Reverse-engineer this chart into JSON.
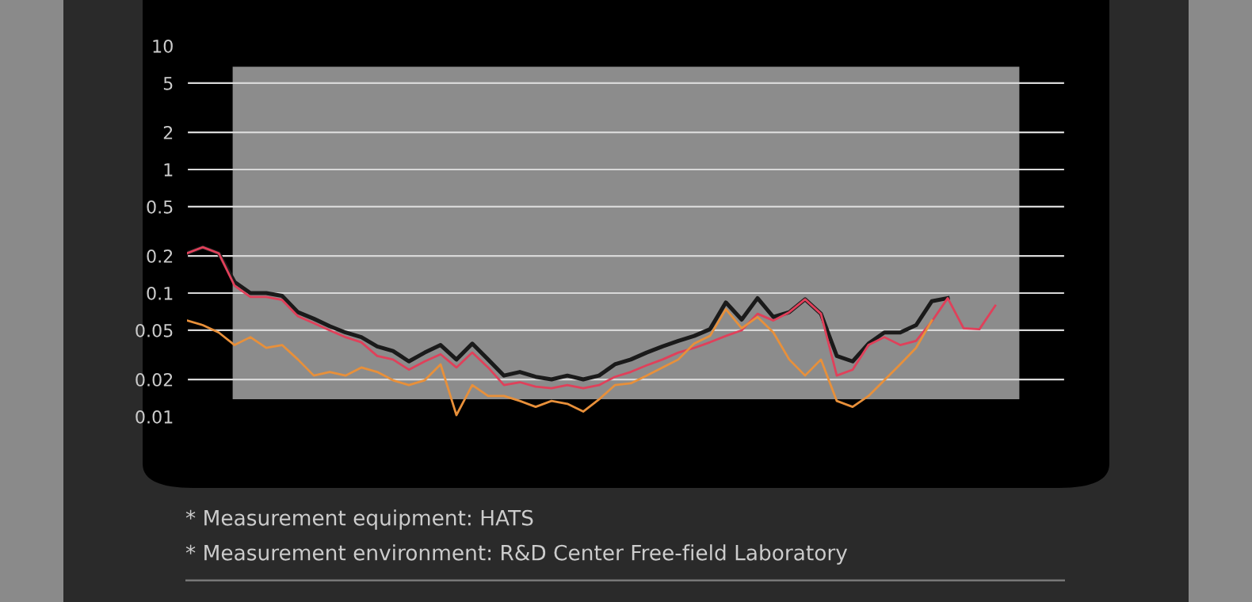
{
  "chart_data": {
    "type": "line",
    "categories": [
      null,
      null,
      null,
      null,
      null,
      null,
      null,
      null,
      null,
      null,
      null,
      null,
      null,
      null,
      null,
      null,
      null,
      null,
      null,
      null,
      null,
      null,
      null,
      null,
      null,
      null,
      null,
      null,
      null,
      null,
      null,
      null,
      null,
      null,
      null,
      null,
      null,
      null,
      null,
      null,
      null,
      null,
      null,
      null,
      null,
      null,
      null,
      null,
      null,
      null,
      null,
      null
    ],
    "series": [
      {
        "color": "#1a1a1a",
        "values": [
          0.21,
          0.235,
          0.21,
          0.123,
          0.1,
          0.1,
          0.095,
          0.07,
          0.062,
          0.054,
          0.048,
          0.044,
          0.037,
          0.034,
          0.028,
          0.033,
          0.038,
          0.029,
          0.039,
          0.029,
          0.0215,
          0.023,
          0.021,
          0.02,
          0.0215,
          0.02,
          0.0215,
          0.0265,
          0.029,
          0.033,
          0.037,
          0.041,
          0.045,
          0.051,
          0.084,
          0.061,
          0.091,
          0.064,
          0.07,
          0.089,
          0.068,
          0.031,
          0.028,
          0.039,
          0.048,
          0.048,
          0.055,
          0.086,
          0.091,
          null,
          null,
          null
        ]
      },
      {
        "color": "#e0405a",
        "values": [
          0.21,
          0.235,
          0.21,
          0.115,
          0.093,
          0.093,
          0.088,
          0.065,
          0.057,
          0.05,
          0.044,
          0.04,
          0.031,
          0.029,
          0.024,
          0.028,
          0.032,
          0.025,
          0.033,
          0.025,
          0.018,
          0.019,
          0.0175,
          0.017,
          0.018,
          0.017,
          0.018,
          0.021,
          0.023,
          0.026,
          0.029,
          0.033,
          0.036,
          0.04,
          0.045,
          0.05,
          0.068,
          0.06,
          0.07,
          0.089,
          0.068,
          0.0215,
          0.024,
          0.038,
          0.044,
          0.038,
          0.041,
          0.059,
          0.091,
          0.052,
          0.051,
          0.079
        ]
      },
      {
        "color": "#e8903a",
        "values": [
          0.06,
          0.055,
          0.048,
          0.038,
          0.044,
          0.036,
          0.038,
          0.029,
          0.0215,
          0.023,
          0.0215,
          0.025,
          0.023,
          0.0197,
          0.018,
          0.0197,
          0.0265,
          0.0103,
          0.018,
          0.0147,
          0.0147,
          0.0134,
          0.012,
          0.0134,
          0.0127,
          0.011,
          0.0138,
          0.018,
          0.0186,
          0.0215,
          0.025,
          0.029,
          0.039,
          0.045,
          0.074,
          0.052,
          0.064,
          0.048,
          0.029,
          0.0215,
          0.029,
          0.0134,
          0.012,
          0.0147,
          0.0197,
          0.0265,
          0.036,
          0.06,
          null,
          null,
          null,
          null
        ]
      }
    ],
    "log": "y",
    "ylim": [
      0.01,
      10
    ],
    "yticks": [
      0.01,
      0.02,
      0.05,
      0.1,
      0.2,
      0.5,
      1,
      2,
      5,
      10
    ],
    "grid": "y",
    "tick_labels": "y",
    "line_style": "solid",
    "legend": false,
    "annotations": [
      "* Measurement equipment: HATS",
      "* Measurement environment: R&D Center Free-field Laboratory"
    ]
  }
}
